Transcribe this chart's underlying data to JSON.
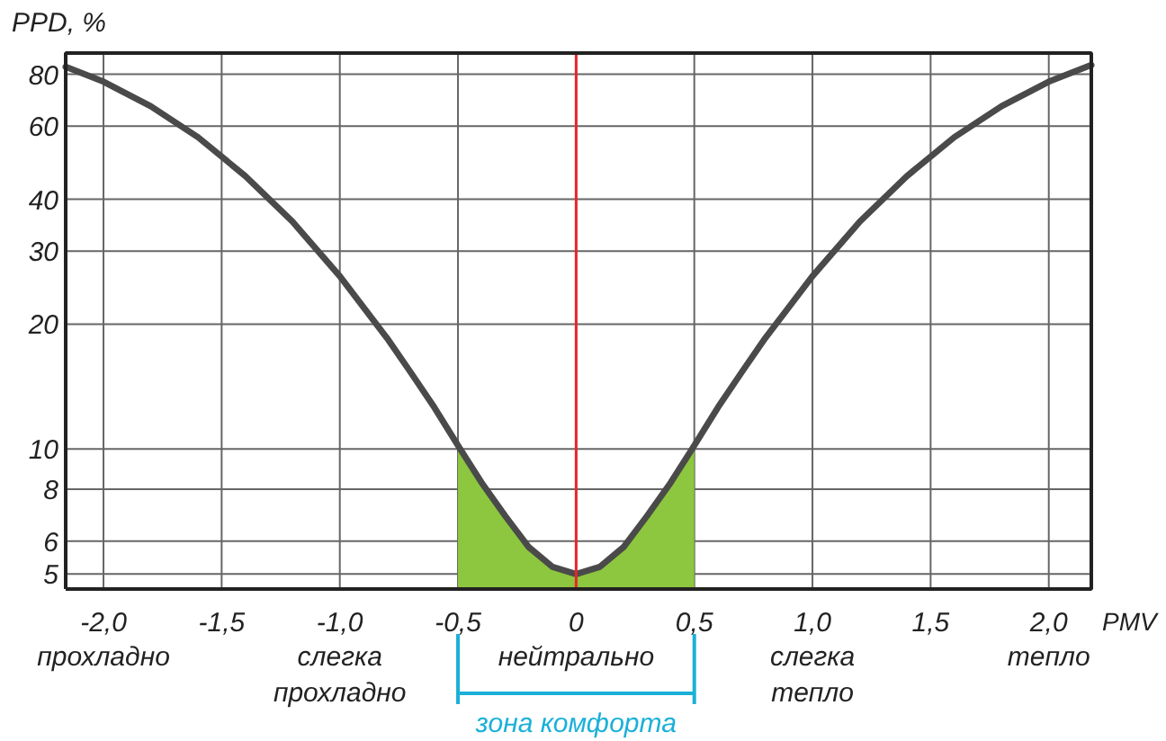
{
  "chart_data": {
    "type": "line",
    "xlabel": "PMV",
    "ylabel": "PPD, %",
    "log": "y",
    "grid": true,
    "xlim": [
      -2.16,
      2.18
    ],
    "ylim": [
      4.6,
      90
    ],
    "xticks": [
      {
        "value": -2,
        "label": "-2,0\nпрохладно"
      },
      {
        "value": -1.5,
        "label": "-1,5"
      },
      {
        "value": -1,
        "label": "-1,0\nслегка\nпрохладно"
      },
      {
        "value": -0.5,
        "label": "-0,5"
      },
      {
        "value": 0,
        "label": "0\nнейтрально"
      },
      {
        "value": 0.5,
        "label": "0,5"
      },
      {
        "value": 1,
        "label": "1,0\nслегка\nтепло"
      },
      {
        "value": 1.5,
        "label": "1,5"
      },
      {
        "value": 2,
        "label": "2,0\nтепло"
      }
    ],
    "yticks": [
      5,
      6,
      8,
      10,
      20,
      30,
      40,
      60,
      80
    ],
    "series": [
      {
        "color": "#4a4a4a",
        "x": [
          -2.16,
          -2.0,
          -1.8,
          -1.6,
          -1.4,
          -1.2,
          -1.0,
          -0.8,
          -0.7,
          -0.6,
          -0.5,
          -0.4,
          -0.3,
          -0.2,
          -0.1,
          0,
          0.1,
          0.2,
          0.3,
          0.4,
          0.5,
          0.6,
          0.7,
          0.8,
          1.0,
          1.2,
          1.4,
          1.6,
          1.8,
          2.0,
          2.18
        ],
        "values": [
          83.4,
          76.8,
          67.0,
          56.4,
          45.5,
          35.3,
          26.1,
          18.5,
          15.3,
          12.6,
          10.2,
          8.3,
          6.9,
          5.8,
          5.2,
          5.0,
          5.2,
          5.8,
          6.9,
          8.3,
          10.2,
          12.6,
          15.3,
          18.5,
          26.1,
          35.3,
          45.5,
          56.4,
          67.0,
          76.8,
          84.2
        ]
      },
      {
        "type": "area",
        "color": "#8dc63f",
        "x": [
          -0.5,
          -0.4,
          -0.3,
          -0.2,
          -0.1,
          0,
          0.1,
          0.2,
          0.3,
          0.4,
          0.5
        ],
        "values": [
          10.2,
          8.3,
          6.9,
          5.8,
          5.2,
          5.0,
          5.2,
          5.8,
          6.9,
          8.3,
          10.2
        ]
      }
    ],
    "ref_lines": [
      {
        "axis": "x",
        "value": 0,
        "color": "#e8262b"
      }
    ],
    "annotations": [
      "зона комфорта"
    ]
  }
}
